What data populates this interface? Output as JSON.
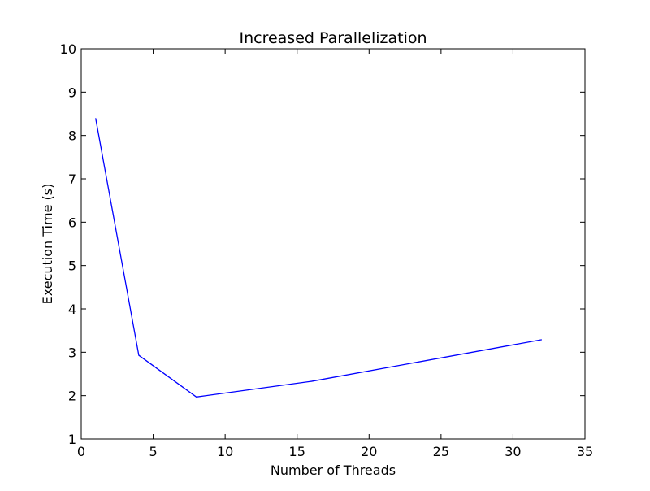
{
  "chart_data": {
    "type": "line",
    "title": "Increased Parallelization",
    "xlabel": "Number of Threads",
    "ylabel": "Execution Time (s)",
    "xlim": [
      0,
      35
    ],
    "ylim": [
      1,
      10
    ],
    "xticks": [
      0,
      5,
      10,
      15,
      20,
      25,
      30,
      35
    ],
    "yticks": [
      1,
      2,
      3,
      4,
      5,
      6,
      7,
      8,
      9,
      10
    ],
    "xtick_labels": [
      "0",
      "5",
      "10",
      "15",
      "20",
      "25",
      "30",
      "35"
    ],
    "ytick_labels": [
      "1",
      "2",
      "3",
      "4",
      "5",
      "6",
      "7",
      "8",
      "9",
      "10"
    ],
    "grid": false,
    "series": [
      {
        "color": "#0000ff",
        "x": [
          1,
          4,
          8,
          16,
          32
        ],
        "y": [
          8.4,
          2.93,
          1.97,
          2.33,
          3.29
        ]
      }
    ]
  }
}
